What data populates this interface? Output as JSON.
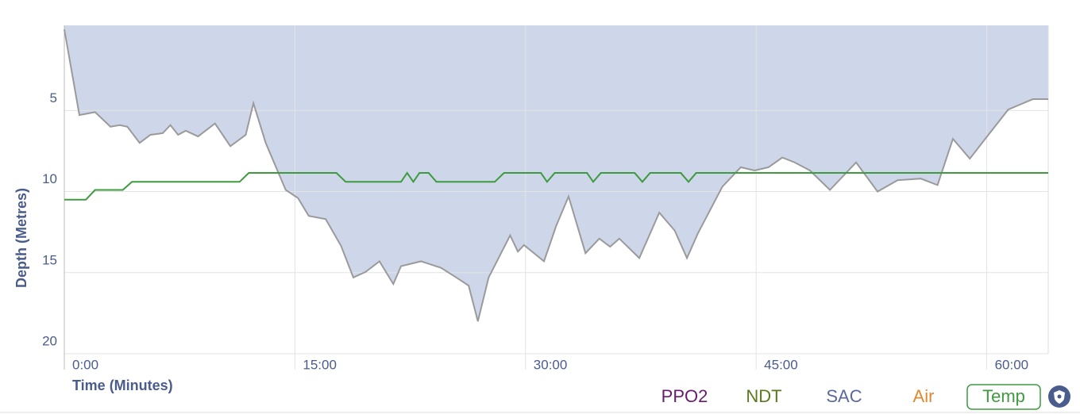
{
  "chart_data": {
    "type": "area",
    "xlabel": "Time (Minutes)",
    "ylabel": "Depth (Metres)",
    "xlim": [
      0,
      64
    ],
    "xticks": [
      {
        "value": 0,
        "label": "0:00"
      },
      {
        "value": 15,
        "label": "15:00"
      },
      {
        "value": 30,
        "label": "30:00"
      },
      {
        "value": 45,
        "label": "45:00"
      },
      {
        "value": 60,
        "label": "60:00"
      }
    ],
    "ylim": [
      -0.25,
      20
    ],
    "yticks": [
      5,
      10,
      15,
      20
    ],
    "y_inverted": true,
    "grid": true,
    "color": "#ced7ea",
    "line_color": "#9a9a9a",
    "x": [
      0,
      0.98,
      2.0,
      3.0,
      3.6,
      4.1,
      4.9,
      5.6,
      6.4,
      6.9,
      7.4,
      7.9,
      8.7,
      9.8,
      10.8,
      11.8,
      12.3,
      13.1,
      14.4,
      15.2,
      15.9,
      17.0,
      18.0,
      18.8,
      19.6,
      20.5,
      21.4,
      21.9,
      23.2,
      24.5,
      25.5,
      26.3,
      26.9,
      27.6,
      29.0,
      29.5,
      29.9,
      31.2,
      32.0,
      32.8,
      33.9,
      34.8,
      35.5,
      36.1,
      37.4,
      38.7,
      39.7,
      40.5,
      41.2,
      42.8,
      44.0,
      44.9,
      45.8,
      46.7,
      47.5,
      48.5,
      49.8,
      51.5,
      52.9,
      54.2,
      55.7,
      56.8,
      57.8,
      58.9,
      59.9,
      61.4,
      63.0,
      64.0
    ],
    "values": [
      0,
      5.28,
      5.1,
      6.0,
      5.9,
      6.0,
      7.0,
      6.5,
      6.4,
      5.9,
      6.5,
      6.25,
      6.6,
      5.8,
      7.2,
      6.5,
      4.55,
      7.0,
      9.9,
      10.4,
      11.5,
      11.7,
      13.35,
      15.3,
      14.95,
      14.3,
      15.7,
      14.6,
      14.3,
      14.7,
      15.3,
      15.8,
      18.0,
      15.3,
      12.7,
      13.7,
      13.3,
      14.3,
      12.1,
      10.3,
      13.8,
      12.9,
      13.4,
      12.9,
      14.1,
      11.3,
      12.4,
      14.1,
      12.6,
      9.7,
      8.5,
      8.7,
      8.5,
      7.9,
      8.2,
      8.7,
      9.9,
      8.2,
      10.0,
      9.3,
      9.2,
      9.6,
      6.75,
      7.97,
      6.75,
      4.94,
      4.3,
      4.3
    ],
    "temp": {
      "color": "#3e9a3e",
      "x": [
        0,
        1.4,
        2.0,
        3.8,
        4.4,
        11.4,
        12.0,
        17.7,
        18.3,
        21.9,
        22.3,
        22.7,
        23.1,
        23.7,
        24.2,
        28.0,
        28.6,
        31.0,
        31.4,
        31.9,
        34.0,
        34.4,
        34.9,
        37.1,
        37.6,
        38.1,
        40.1,
        40.6,
        41.1,
        64.0
      ],
      "values": [
        10.5,
        10.5,
        9.9,
        9.9,
        9.4,
        9.4,
        8.85,
        8.85,
        9.4,
        9.4,
        8.85,
        9.4,
        8.85,
        8.85,
        9.4,
        9.4,
        8.85,
        8.85,
        9.4,
        8.85,
        8.85,
        9.4,
        8.85,
        8.85,
        9.4,
        8.85,
        8.85,
        9.4,
        8.85,
        8.85
      ]
    },
    "legend": [
      {
        "label": "PPO2",
        "color": "#6a1b6e"
      },
      {
        "label": "NDT",
        "color": "#5b7a1e"
      },
      {
        "label": "SAC",
        "color": "#5a6a9a"
      },
      {
        "label": "Air",
        "color": "#e08a2e"
      },
      {
        "label": "Temp",
        "color": "#3e9a3e"
      }
    ]
  }
}
